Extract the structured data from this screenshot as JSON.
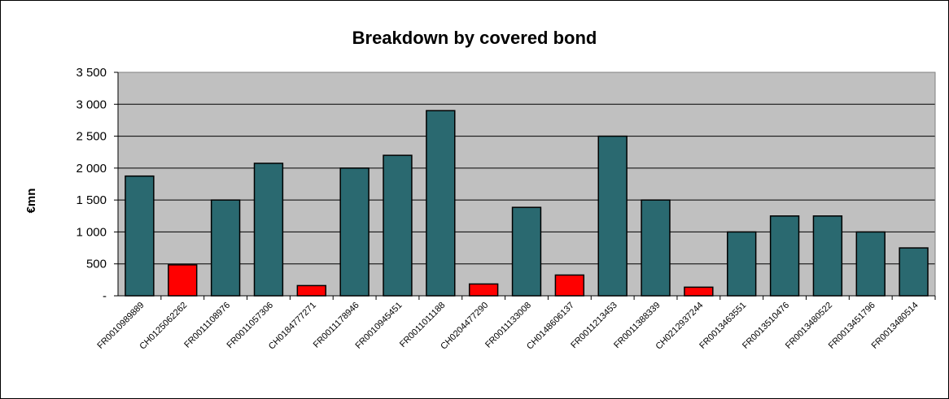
{
  "chart_data": {
    "type": "bar",
    "title": "Breakdown by covered bond",
    "xlabel": "",
    "ylabel": "€mn",
    "ylim": [
      0,
      3500
    ],
    "yticks": [
      {
        "value": 0,
        "label": "-"
      },
      {
        "value": 500,
        "label": "500"
      },
      {
        "value": 1000,
        "label": "1 000"
      },
      {
        "value": 1500,
        "label": "1 500"
      },
      {
        "value": 2000,
        "label": "2 000"
      },
      {
        "value": 2500,
        "label": "2 500"
      },
      {
        "value": 3000,
        "label": "3 000"
      },
      {
        "value": 3500,
        "label": "3 500"
      }
    ],
    "categories": [
      "FR0010989889",
      "CH0125062262",
      "FR0011108976",
      "FR0011057306",
      "CH0184777271",
      "FR0011178946",
      "FR0010945451",
      "FR0011011188",
      "CH0204477290",
      "FR0011133008",
      "CH0148606137",
      "FR0011213453",
      "FR0011388339",
      "CH0212937244",
      "FR0013463551",
      "FR0013510476",
      "FR0013480522",
      "FR0013451796",
      "FR0013480514"
    ],
    "values": [
      1875,
      485,
      1500,
      2075,
      160,
      2000,
      2200,
      2900,
      185,
      1385,
      325,
      2500,
      1500,
      135,
      1000,
      1250,
      1250,
      1000,
      750
    ],
    "colors": {
      "FR": "#2a6970",
      "CH": "#ff0000",
      "plot_background": "#c0c0c0",
      "gridline": "#000000"
    },
    "grid": true,
    "legend": "none"
  }
}
